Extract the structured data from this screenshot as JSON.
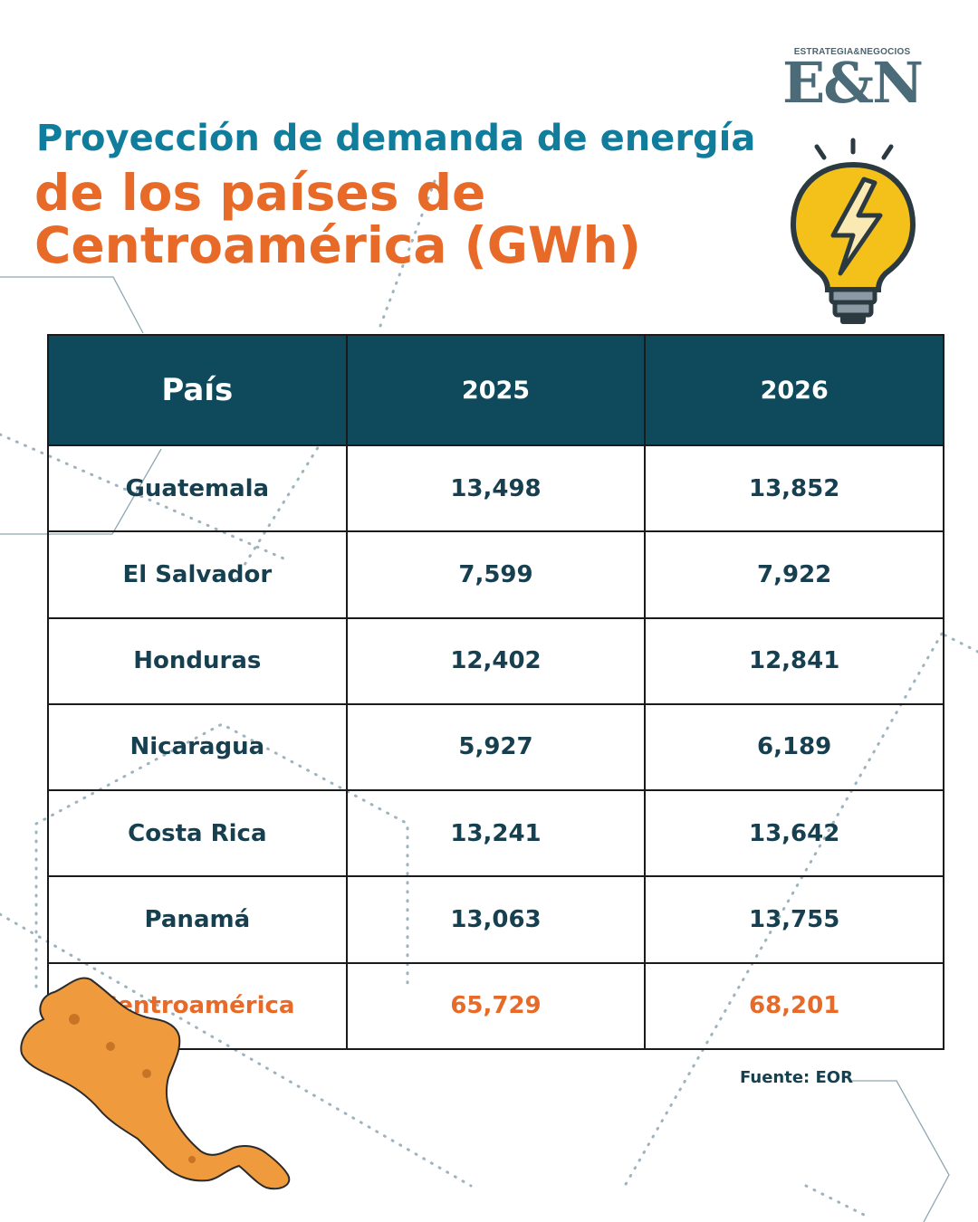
{
  "brand": {
    "tagline": "ESTRATEGIA&NEGOCIOS",
    "logo": "E&N"
  },
  "title": {
    "line1": "Proyección de demanda de energía",
    "line2": "de los países de",
    "line3": "Centroamérica (GWh)"
  },
  "table": {
    "headers": [
      "País",
      "2025",
      "2026"
    ],
    "rows": [
      [
        "Guatemala",
        "13,498",
        "13,852"
      ],
      [
        "El Salvador",
        "7,599",
        "7,922"
      ],
      [
        "Honduras",
        "12,402",
        "12,841"
      ],
      [
        "Nicaragua",
        "5,927",
        "6,189"
      ],
      [
        "Costa Rica",
        "13,241",
        "13,642"
      ],
      [
        "Panamá",
        "13,063",
        "13,755"
      ],
      [
        "Centroamérica",
        "65,729",
        "68,201"
      ]
    ]
  },
  "source": "Fuente: EOR",
  "colors": {
    "title_blue": "#0f7d9b",
    "accent_orange": "#e86a28",
    "header_bg": "#0e4a5c",
    "text_dark": "#163f50"
  },
  "icons": {
    "bulb": "lightbulb-icon",
    "map": "central-america-map-icon"
  }
}
